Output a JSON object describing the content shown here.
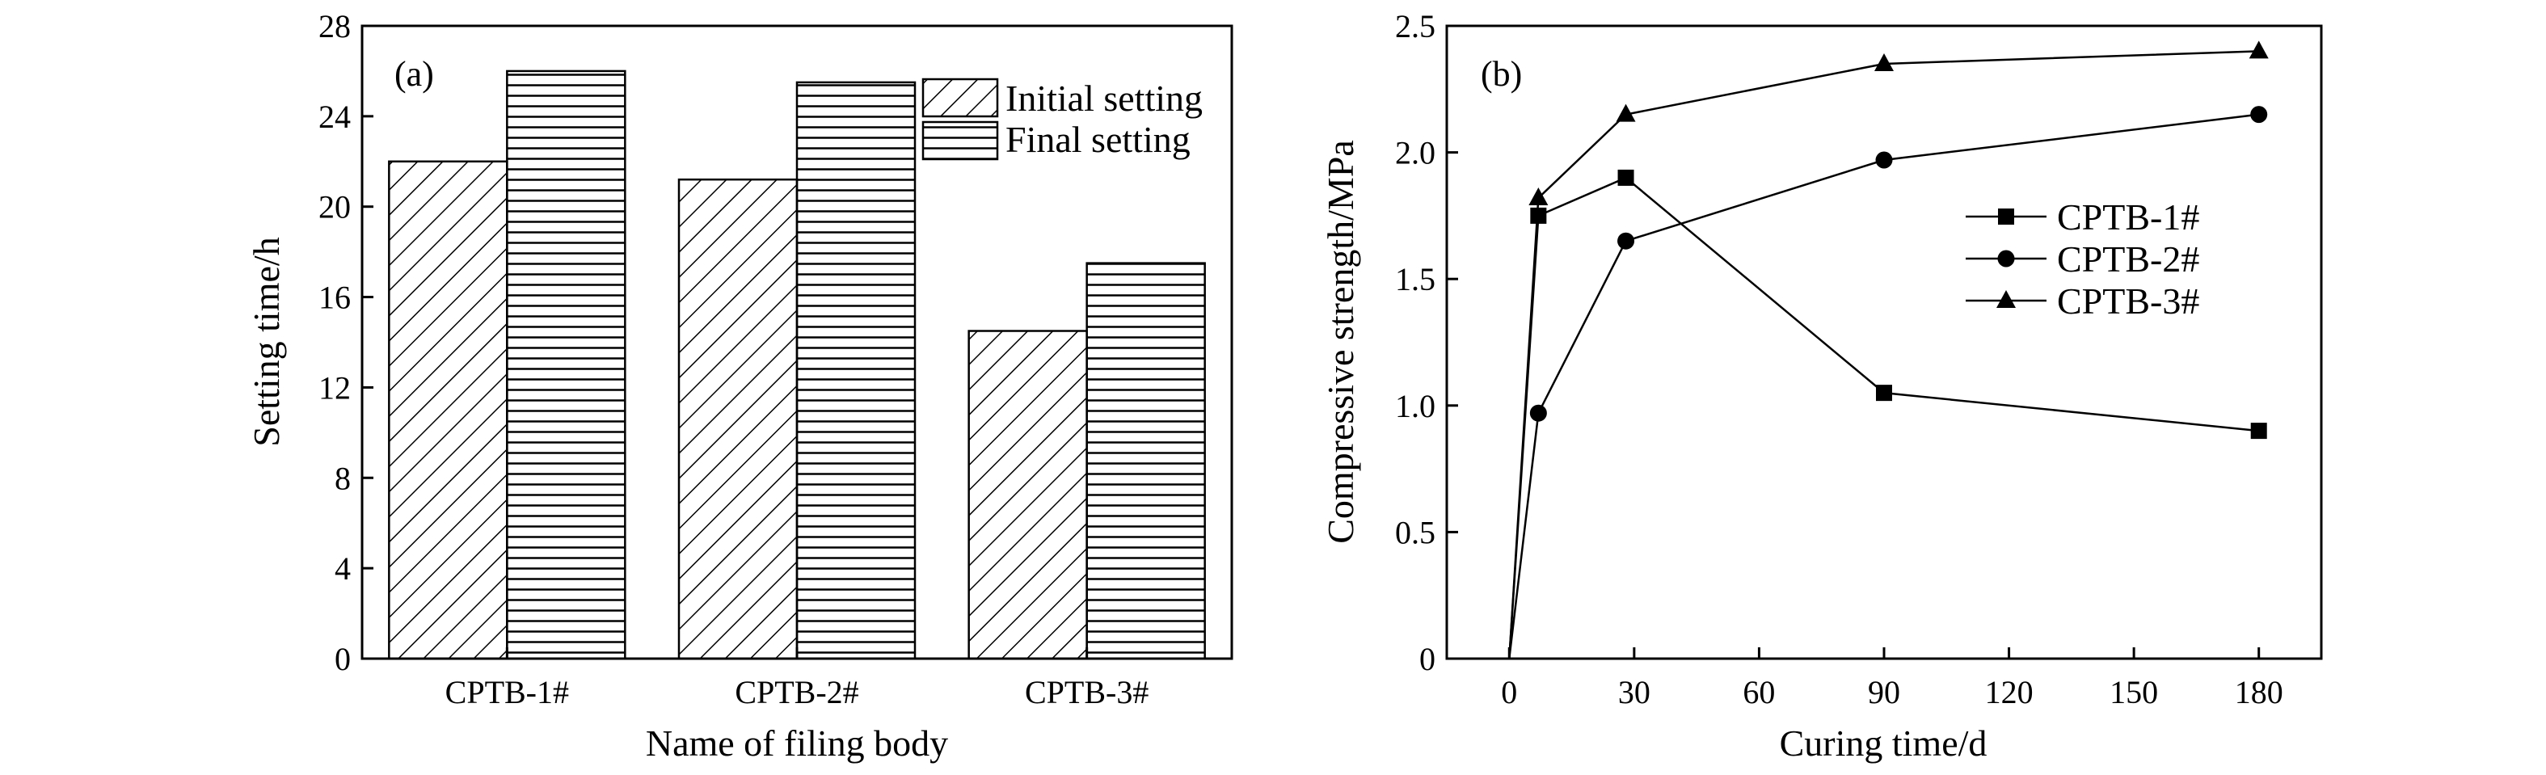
{
  "colors": {
    "ink": "#000000",
    "background": "#ffffff"
  },
  "chart_data": [
    {
      "type": "bar",
      "panel_label": "(a)",
      "xlabel": "Name of filing body",
      "ylabel": "Setting time/h",
      "categories": [
        "CPTB-1#",
        "CPTB-2#",
        "CPTB-3#"
      ],
      "ylim": [
        0,
        28
      ],
      "yticks": [
        0,
        4,
        8,
        12,
        16,
        20,
        24,
        28
      ],
      "series": [
        {
          "name": "Initial setting",
          "pattern": "diagonal-hatch",
          "values": [
            22,
            21.2,
            14.5
          ]
        },
        {
          "name": "Final setting",
          "pattern": "horizontal-hatch",
          "values": [
            26,
            25.5,
            17.5
          ]
        }
      ],
      "legend": "top-right",
      "grid": false
    },
    {
      "type": "line",
      "panel_label": "(b)",
      "xlabel": "Curing time/d",
      "ylabel": "Compressive strength/MPa",
      "xlim": [
        -15,
        195
      ],
      "ylim": [
        0,
        2.5
      ],
      "xticks": [
        0,
        30,
        60,
        90,
        120,
        150,
        180
      ],
      "yticks": [
        0,
        0.5,
        1.0,
        1.5,
        2.0,
        2.5
      ],
      "ytick_labels": [
        "0",
        "0.5",
        "1.0",
        "1.5",
        "2.0",
        "2.5"
      ],
      "x": [
        0,
        7,
        28,
        90,
        180
      ],
      "series": [
        {
          "name": "CPTB-1#",
          "marker": "square",
          "values": [
            0,
            1.75,
            1.9,
            1.05,
            0.9
          ]
        },
        {
          "name": "CPTB-2#",
          "marker": "circle",
          "values": [
            0,
            0.97,
            1.65,
            1.97,
            2.15
          ]
        },
        {
          "name": "CPTB-3#",
          "marker": "triangle",
          "values": [
            0,
            1.82,
            2.15,
            2.35,
            2.4
          ]
        }
      ],
      "legend": "center-right",
      "grid": false
    }
  ]
}
